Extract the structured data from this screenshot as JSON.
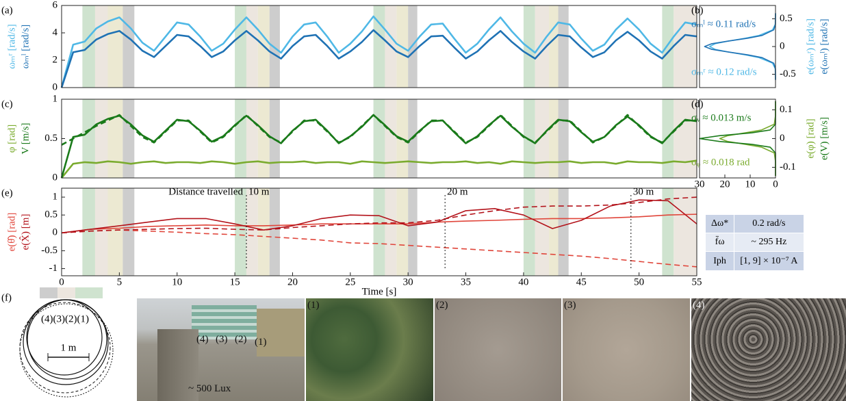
{
  "chart_data": [
    {
      "type": "line",
      "panel": "(a)",
      "xlim": [
        0,
        55
      ],
      "ylim": [
        0,
        6
      ],
      "yticks": [
        0,
        2,
        4,
        6
      ],
      "bands": true,
      "ylabels": [
        {
          "text": "ωₘʳ [rad/s]",
          "color": "#4fb8e6"
        },
        {
          "text": "ωₘˡ [rad/s]",
          "color": "#1f72b4"
        }
      ],
      "x": [
        0,
        1,
        2,
        3,
        4,
        5,
        6,
        7,
        8,
        9,
        10,
        11,
        12,
        13,
        14,
        15,
        16,
        17,
        18,
        19,
        20,
        21,
        22,
        23,
        24,
        25,
        26,
        27,
        28,
        29,
        30,
        31,
        32,
        33,
        34,
        35,
        36,
        37,
        38,
        39,
        40,
        41,
        42,
        43,
        44,
        45,
        46,
        47,
        48,
        49,
        50,
        51,
        52,
        53,
        54,
        55
      ],
      "series": [
        {
          "color": "#4fb8e6",
          "values": [
            0,
            3.14,
            3.36,
            4.32,
            4.83,
            5.13,
            4.32,
            3.28,
            2.69,
            3.73,
            4.76,
            4.61,
            3.73,
            2.69,
            3.21,
            4.24,
            5.13,
            4.24,
            3.21,
            2.55,
            3.73,
            4.61,
            4.76,
            3.73,
            2.55,
            3.21,
            4.1,
            5.2,
            4.24,
            3.21,
            2.69,
            3.73,
            4.61,
            4.68,
            3.58,
            2.55,
            3.21,
            4.24,
            5.13,
            4.1,
            3.21,
            2.55,
            3.73,
            4.76,
            4.61,
            3.58,
            2.69,
            3.14,
            4.24,
            5.05,
            4.24,
            3.21,
            2.55,
            3.73,
            4.76,
            4.61
          ]
        },
        {
          "color": "#1f72b4",
          "values": [
            0,
            2.58,
            2.75,
            3.51,
            3.91,
            4.14,
            3.51,
            2.69,
            2.23,
            3.04,
            3.85,
            3.74,
            3.04,
            2.23,
            2.64,
            3.45,
            4.14,
            3.45,
            2.64,
            2.12,
            3.04,
            3.74,
            3.85,
            3.04,
            2.12,
            2.64,
            3.33,
            4.2,
            3.45,
            2.64,
            2.23,
            3.04,
            3.74,
            3.79,
            2.93,
            2.12,
            2.64,
            3.45,
            4.14,
            3.33,
            2.64,
            2.12,
            3.04,
            3.85,
            3.74,
            2.93,
            2.23,
            2.58,
            3.45,
            4.08,
            3.45,
            2.64,
            2.12,
            3.04,
            3.85,
            3.74
          ]
        }
      ]
    },
    {
      "type": "density",
      "panel": "(b)",
      "xlim": [
        30,
        0
      ],
      "ylim": [
        -0.74,
        0.74
      ],
      "yticks": [
        -0.5,
        0,
        0.5
      ],
      "yaxis_side": "right",
      "ylabels": [
        {
          "text": "e(ωₘʳ) [rad/s]",
          "color": "#4fb8e6"
        },
        {
          "text": "e(ωₘˡ) [rad/s]",
          "color": "#1f72b4"
        }
      ],
      "annotations": [
        {
          "text": "σₘˡ ≈ 0.11 rad/s",
          "color": "#1f72b4"
        },
        {
          "text": "σₘʳ ≈ 0.12 rad/s",
          "color": "#4fb8e6"
        }
      ],
      "y": [
        -0.6,
        -0.4,
        -0.3,
        -0.2,
        -0.15,
        -0.1,
        -0.05,
        0,
        0.05,
        0.1,
        0.15,
        0.2,
        0.3,
        0.4,
        0.6
      ],
      "series": [
        {
          "color": "#4fb8e6",
          "values": [
            0,
            0.1,
            1.2,
            6.5,
            11.9,
            18.4,
            23.8,
            26,
            23.8,
            18.4,
            11.9,
            6.5,
            1.2,
            0.1,
            0
          ]
        },
        {
          "color": "#1f72b4",
          "values": [
            0,
            0.04,
            0.7,
            5.3,
            10.9,
            18.5,
            25.2,
            28,
            25.2,
            18.5,
            10.9,
            5.3,
            0.7,
            0.04,
            0
          ]
        }
      ]
    },
    {
      "type": "line",
      "panel": "(c)",
      "xlim": [
        0,
        55
      ],
      "ylim": [
        0,
        1
      ],
      "yticks": [
        0,
        0.5,
        1
      ],
      "bands": true,
      "ylabels": [
        {
          "text": "φ [rad]",
          "color": "#7aab2e"
        },
        {
          "text": "V [m/s]",
          "color": "#1a7a1a"
        }
      ],
      "x": [
        0,
        1,
        2,
        3,
        4,
        5,
        6,
        7,
        8,
        9,
        10,
        11,
        12,
        13,
        14,
        15,
        16,
        17,
        18,
        19,
        20,
        21,
        22,
        23,
        24,
        25,
        26,
        27,
        28,
        29,
        30,
        31,
        32,
        33,
        34,
        35,
        36,
        37,
        38,
        39,
        40,
        41,
        42,
        43,
        44,
        45,
        46,
        47,
        48,
        49,
        50,
        51,
        52,
        53,
        54,
        55
      ],
      "series": [
        {
          "color": "#7aab2e",
          "values": [
            0,
            0.18,
            0.2,
            0.19,
            0.21,
            0.2,
            0.18,
            0.2,
            0.21,
            0.19,
            0.2,
            0.2,
            0.19,
            0.21,
            0.2,
            0.18,
            0.2,
            0.21,
            0.19,
            0.2,
            0.2,
            0.21,
            0.19,
            0.2,
            0.2,
            0.18,
            0.21,
            0.2,
            0.19,
            0.2,
            0.21,
            0.2,
            0.19,
            0.2,
            0.2,
            0.21,
            0.19,
            0.2,
            0.18,
            0.21,
            0.2,
            0.19,
            0.2,
            0.2,
            0.21,
            0.19,
            0.2,
            0.2,
            0.18,
            0.21,
            0.2,
            0.2,
            0.19,
            0.21,
            0.2,
            0.22
          ]
        },
        {
          "color": "#1a7a1a",
          "dash": true,
          "values": [
            0.42,
            0.5,
            0.58,
            0.66,
            0.73,
            0.8,
            0.66,
            0.52,
            0.45,
            0.59,
            0.73,
            0.73,
            0.59,
            0.45,
            0.52,
            0.66,
            0.8,
            0.66,
            0.52,
            0.45,
            0.59,
            0.73,
            0.73,
            0.59,
            0.45,
            0.52,
            0.66,
            0.8,
            0.66,
            0.52,
            0.45,
            0.59,
            0.73,
            0.73,
            0.59,
            0.45,
            0.52,
            0.66,
            0.8,
            0.66,
            0.52,
            0.45,
            0.59,
            0.73,
            0.73,
            0.59,
            0.45,
            0.52,
            0.66,
            0.8,
            0.66,
            0.52,
            0.45,
            0.59,
            0.73,
            0.73
          ]
        },
        {
          "color": "#1a7a1a",
          "values": [
            0,
            0.52,
            0.55,
            0.68,
            0.75,
            0.79,
            0.68,
            0.54,
            0.46,
            0.6,
            0.74,
            0.72,
            0.6,
            0.46,
            0.53,
            0.67,
            0.79,
            0.67,
            0.53,
            0.44,
            0.6,
            0.72,
            0.74,
            0.6,
            0.44,
            0.53,
            0.65,
            0.8,
            0.67,
            0.53,
            0.46,
            0.6,
            0.72,
            0.73,
            0.58,
            0.44,
            0.53,
            0.67,
            0.79,
            0.65,
            0.53,
            0.44,
            0.6,
            0.74,
            0.72,
            0.58,
            0.46,
            0.52,
            0.67,
            0.78,
            0.67,
            0.53,
            0.44,
            0.6,
            0.74,
            0.72
          ]
        }
      ]
    },
    {
      "type": "density",
      "panel": "(d)",
      "xlim": [
        30,
        0
      ],
      "ylim": [
        -0.137,
        0.137
      ],
      "yticks": [
        -0.1,
        0,
        0.1
      ],
      "xticks": [
        30,
        20,
        10,
        0
      ],
      "yaxis_side": "right",
      "ylabels": [
        {
          "text": "e(φ) [rad]",
          "color": "#7aab2e"
        },
        {
          "text": "e(V) [m/s]",
          "color": "#1a7a1a"
        }
      ],
      "annotations": [
        {
          "text": "σᵥ ≈ 0.013 m/s",
          "color": "#1a7a1a"
        },
        {
          "text": "σᵩ ≈ 0.018 rad",
          "color": "#7aab2e"
        }
      ],
      "y": [
        -0.13,
        -0.08,
        -0.05,
        -0.03,
        -0.02,
        -0.01,
        0,
        0.01,
        0.02,
        0.03,
        0.05,
        0.08,
        0.13
      ],
      "series": [
        {
          "color": "#7aab2e",
          "values": [
            0,
            0,
            0.5,
            5.5,
            11.9,
            18.9,
            22,
            18.9,
            11.9,
            5.5,
            0.5,
            0,
            0
          ]
        },
        {
          "color": "#1a7a1a",
          "values": [
            0,
            0,
            0,
            2.1,
            9.3,
            22.2,
            30,
            22.2,
            9.3,
            2.1,
            0,
            0,
            0
          ]
        }
      ]
    },
    {
      "type": "line",
      "panel": "(e)",
      "xlim": [
        0,
        55
      ],
      "ylim": [
        -1.2,
        1.25
      ],
      "yticks": [
        -1,
        -0.5,
        0,
        0.5,
        1
      ],
      "xticks": [
        0,
        5,
        10,
        15,
        20,
        25,
        30,
        35,
        40,
        45,
        50,
        55
      ],
      "bands": true,
      "xlabel": "Time [s]",
      "ylabels": [
        {
          "text": "e(θ̂) [rad]",
          "color": "#e0453a"
        },
        {
          "text": "e(X̂) [m]",
          "color": "#b3121a"
        }
      ],
      "marker_title": "Distance travelled",
      "markers": [
        {
          "x": 16,
          "label": "10 m"
        },
        {
          "x": 33.2,
          "label": "20 m"
        },
        {
          "x": 49.3,
          "label": "30 m"
        }
      ],
      "x": [
        0,
        2.5,
        5,
        7.5,
        10,
        12.5,
        15,
        17.5,
        20,
        22.5,
        25,
        27.5,
        30,
        32.5,
        35,
        37.5,
        40,
        42.5,
        45,
        47.5,
        50,
        52.5,
        55
      ],
      "series": [
        {
          "color": "#e0453a",
          "values": [
            0,
            0.1,
            0.13,
            0.18,
            0.2,
            0.22,
            0.2,
            0.2,
            0.22,
            0.25,
            0.25,
            0.25,
            0.25,
            0.3,
            0.33,
            0.35,
            0.38,
            0.4,
            0.4,
            0.42,
            0.45,
            0.5,
            0.52
          ]
        },
        {
          "color": "#e0453a",
          "dash": true,
          "values": [
            0,
            0.05,
            0.08,
            0.05,
            0.02,
            -0.02,
            -0.05,
            -0.1,
            -0.15,
            -0.2,
            -0.28,
            -0.3,
            -0.35,
            -0.4,
            -0.45,
            -0.5,
            -0.55,
            -0.6,
            -0.65,
            -0.72,
            -0.8,
            -0.88,
            -0.95
          ]
        },
        {
          "color": "#b3121a",
          "values": [
            0,
            0.1,
            0.2,
            0.3,
            0.4,
            0.4,
            0.25,
            0.08,
            0.2,
            0.4,
            0.5,
            0.48,
            0.2,
            0.3,
            0.62,
            0.68,
            0.5,
            0.12,
            0.35,
            0.75,
            0.92,
            0.9,
            0.25
          ]
        },
        {
          "color": "#b3121a",
          "dash": true,
          "values": [
            0,
            0.05,
            0.08,
            0.1,
            0.12,
            0.13,
            0.1,
            0.08,
            0.15,
            0.2,
            0.25,
            0.28,
            0.28,
            0.35,
            0.5,
            0.62,
            0.72,
            0.75,
            0.75,
            0.78,
            0.85,
            0.95,
            1.0
          ]
        }
      ]
    }
  ],
  "highlights": [
    {
      "start": 1.8,
      "end": 2.9,
      "color": "#cfe3cf"
    },
    {
      "start": 2.9,
      "end": 4,
      "color": "#ece6df"
    },
    {
      "start": 4,
      "end": 5.3,
      "color": "#ece9d2"
    },
    {
      "start": 5.3,
      "end": 6.3,
      "color": "#cdcdcd"
    },
    {
      "start": 15,
      "end": 16,
      "color": "#cfe3cf"
    },
    {
      "start": 16,
      "end": 17,
      "color": "#ece6df"
    },
    {
      "start": 17,
      "end": 18,
      "color": "#ece9d2"
    },
    {
      "start": 18,
      "end": 18.9,
      "color": "#cdcdcd"
    },
    {
      "start": 27,
      "end": 28,
      "color": "#cfe3cf"
    },
    {
      "start": 28,
      "end": 29,
      "color": "#ece6df"
    },
    {
      "start": 29,
      "end": 30,
      "color": "#ece9d2"
    },
    {
      "start": 30,
      "end": 30.8,
      "color": "#cdcdcd"
    },
    {
      "start": 40,
      "end": 41,
      "color": "#cfe3cf"
    },
    {
      "start": 41,
      "end": 42.2,
      "color": "#ece6df"
    },
    {
      "start": 42.2,
      "end": 43,
      "color": "#ece9d2"
    },
    {
      "start": 43,
      "end": 43.9,
      "color": "#cdcdcd"
    },
    {
      "start": 52,
      "end": 53,
      "color": "#cfe3cf"
    },
    {
      "start": 53,
      "end": 55,
      "color": "#ece6df"
    }
  ],
  "table": {
    "rows": [
      [
        "Δω*",
        "0.2 rad/s"
      ],
      [
        "f̄ω",
        "~ 295 Hz"
      ],
      [
        "Iph",
        "[1, 9] × 10⁻⁷ A"
      ]
    ]
  },
  "figure_f": {
    "label": "(f)",
    "surfaces": "(4)(3)(2)(1)",
    "scale": "1 m"
  },
  "photos": {
    "scene_labels": [
      "(4)",
      "(3)",
      "(2)",
      "(1)"
    ],
    "caption": "~ 500 Lux",
    "textures": [
      "(1)",
      "(2)",
      "(3)",
      "(4)"
    ]
  }
}
